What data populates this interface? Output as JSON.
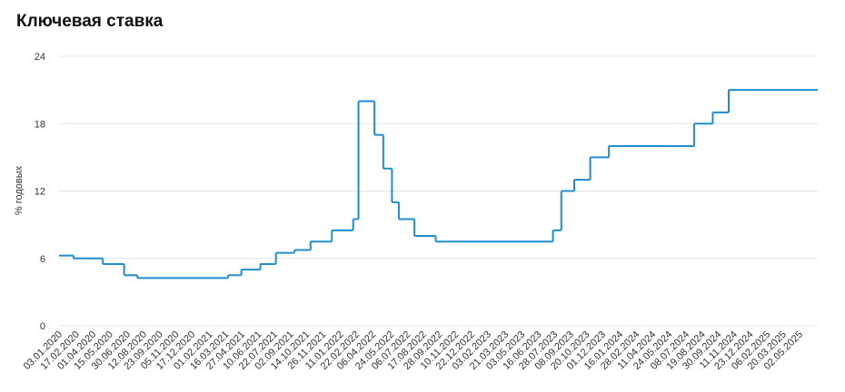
{
  "chart_data": {
    "type": "step-line",
    "title": "Ключевая ставка",
    "y_label": "% годовых",
    "x": [
      "03.01.2020",
      "10.02.2020",
      "27.04.2020",
      "22.06.2020",
      "27.07.2020",
      "22.03.2021",
      "26.04.2021",
      "15.06.2021",
      "26.07.2021",
      "13.09.2021",
      "25.10.2021",
      "20.12.2021",
      "14.02.2022",
      "28.02.2022",
      "11.04.2022",
      "04.05.2022",
      "27.05.2022",
      "14.06.2022",
      "25.07.2022",
      "19.09.2022",
      "24.07.2023",
      "15.08.2023",
      "18.09.2023",
      "30.10.2023",
      "18.12.2023",
      "29.07.2024",
      "16.09.2024",
      "28.10.2024"
    ],
    "series": [
      {
        "name": "Ключевая ставка",
        "color": "#1f8dd0",
        "values": [
          6.25,
          6,
          5.5,
          4.5,
          4.25,
          4.5,
          5,
          5.5,
          6.5,
          6.75,
          7.5,
          8.5,
          9.5,
          20,
          17,
          14,
          11,
          9.5,
          8,
          7.5,
          8.5,
          12,
          13,
          15,
          16,
          18,
          19,
          21
        ]
      }
    ],
    "xlim": [
      "03.01.2020",
      "19.06.2025"
    ],
    "xticks": [
      "03.01.2020",
      "17.02.2020",
      "01.04.2020",
      "15.05.2020",
      "30.06.2020",
      "12.08.2020",
      "23.09.2020",
      "05.11.2020",
      "17.12.2020",
      "01.02.2021",
      "16.03.2021",
      "27.04.2021",
      "10.06.2021",
      "22.07.2021",
      "02.09.2021",
      "14.10.2021",
      "26.11.2021",
      "11.01.2022",
      "22.02.2022",
      "06.04.2022",
      "24.05.2022",
      "06.07.2022",
      "17.08.2022",
      "28.09.2022",
      "10.11.2022",
      "22.12.2022",
      "03.02.2023",
      "21.03.2023",
      "03.05.2023",
      "16.06.2023",
      "28.07.2023",
      "08.09.2023",
      "20.10.2023",
      "01.12.2023",
      "16.01.2024",
      "28.02.2024",
      "11.04.2024",
      "24.05.2024",
      "08.07.2024",
      "19.08.2024",
      "30.09.2024",
      "11.11.2024",
      "23.12.2024",
      "06.02.2025",
      "20.03.2025",
      "02.05.2025"
    ],
    "ylim": [
      0,
      24
    ],
    "yticks": [
      0,
      6,
      12,
      18,
      24
    ],
    "grid": true
  }
}
